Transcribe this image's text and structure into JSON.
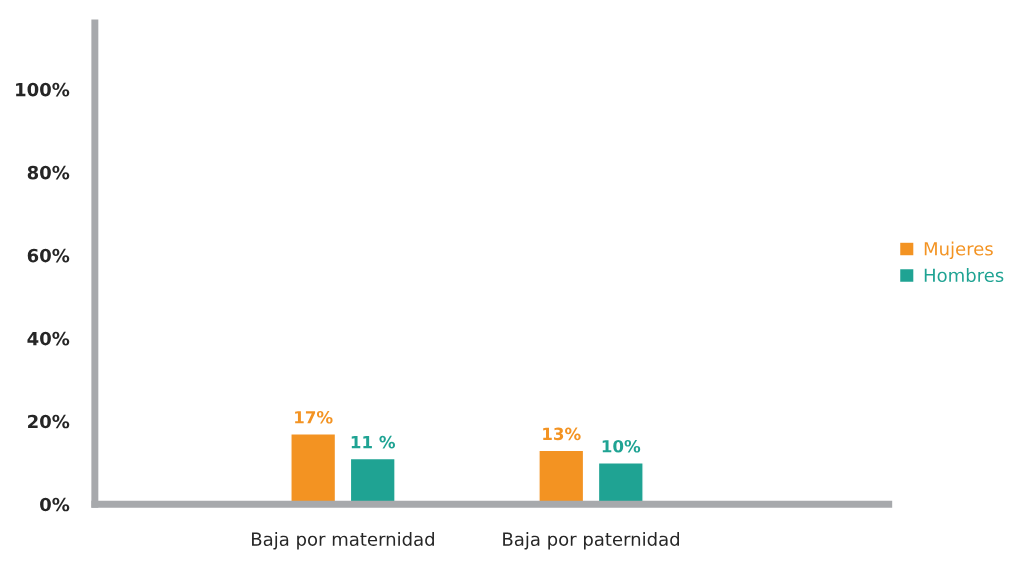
{
  "chart_data": {
    "type": "bar",
    "categories": [
      "Baja por maternidad",
      "Baja por paternidad"
    ],
    "series": [
      {
        "name": "Mujeres",
        "color": "#f39322",
        "values": [
          17,
          13
        ],
        "value_labels": [
          "17%",
          "13%"
        ]
      },
      {
        "name": "Hombres",
        "color": "#1fa393",
        "values": [
          11,
          10
        ],
        "value_labels": [
          "11 %",
          "10%"
        ]
      }
    ],
    "ylim": [
      0,
      116
    ],
    "yticks": [
      {
        "value": 0,
        "label": "0%"
      },
      {
        "value": 20,
        "label": "20%"
      },
      {
        "value": 40,
        "label": "40%"
      },
      {
        "value": 60,
        "label": "60%"
      },
      {
        "value": 80,
        "label": "80%"
      },
      {
        "value": 100,
        "label": "100%"
      }
    ],
    "grid": false,
    "legend": "right"
  }
}
